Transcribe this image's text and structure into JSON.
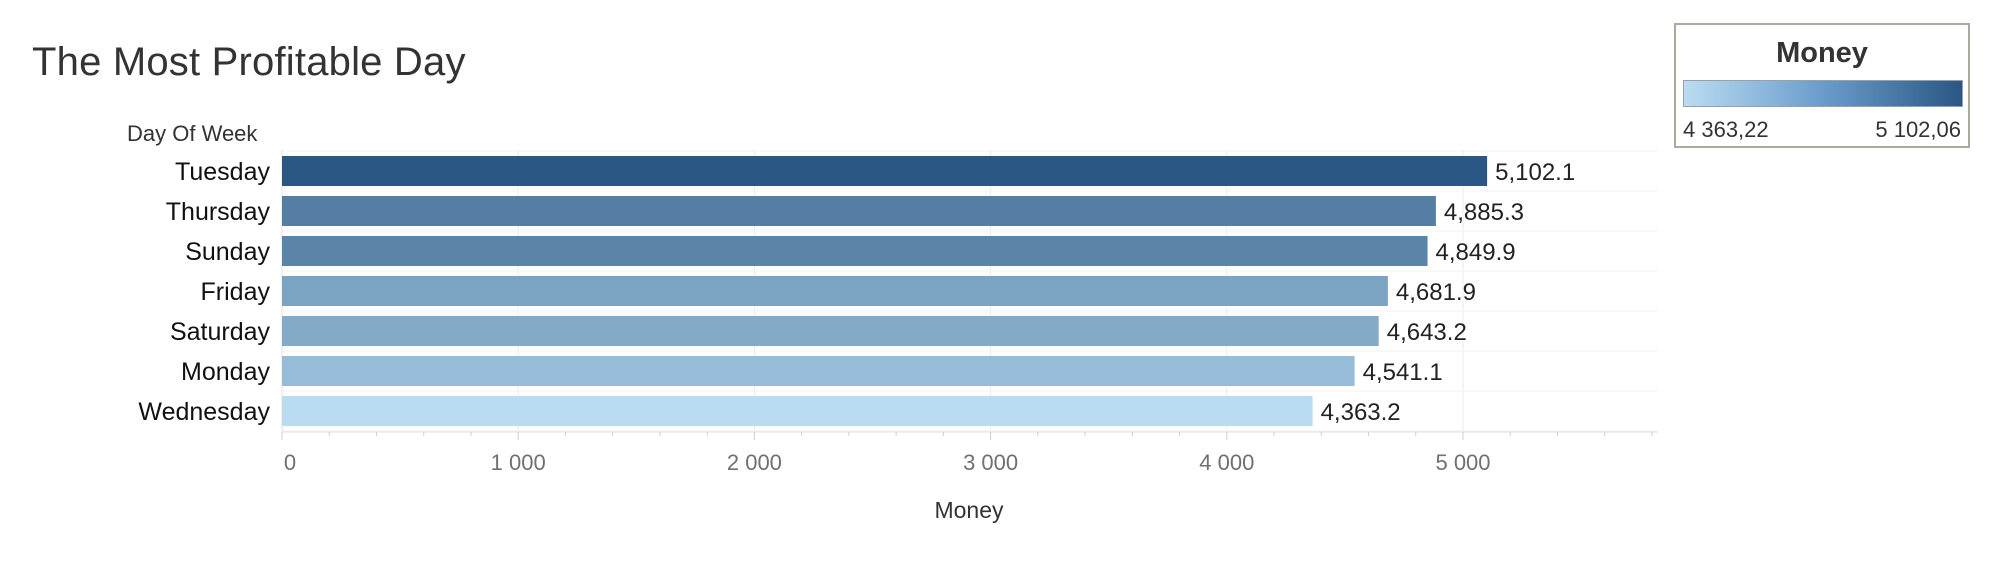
{
  "chart_data": {
    "type": "bar",
    "orientation": "horizontal",
    "title": "The Most Profitable Day",
    "row_header": "Day Of Week",
    "xlabel": "Money",
    "categories": [
      "Tuesday",
      "Thursday",
      "Sunday",
      "Friday",
      "Saturday",
      "Monday",
      "Wednesday"
    ],
    "values": [
      5102.1,
      4885.3,
      4849.9,
      4681.9,
      4643.2,
      4541.1,
      4363.2
    ],
    "value_labels": [
      "5,102.1",
      "4,885.3",
      "4,849.9",
      "4,681.9",
      "4,643.2",
      "4,541.1",
      "4,363.2"
    ],
    "xlim": [
      0,
      5800
    ],
    "ticks": [
      0,
      1000,
      2000,
      3000,
      4000,
      5000
    ],
    "tick_labels": [
      "0",
      "1 000",
      "2 000",
      "3 000",
      "4 000",
      "5 000"
    ],
    "grid": true,
    "legend": {
      "title": "Money",
      "min_label": "4 363,22",
      "max_label": "5 102,06",
      "min": 4363.22,
      "max": 5102.06,
      "placement": "top-right"
    },
    "colors": {
      "low": "#b9dcf1",
      "high": "#2a5783",
      "title": "#333333",
      "tick": "#707070",
      "grid": "#ebebeb"
    }
  }
}
